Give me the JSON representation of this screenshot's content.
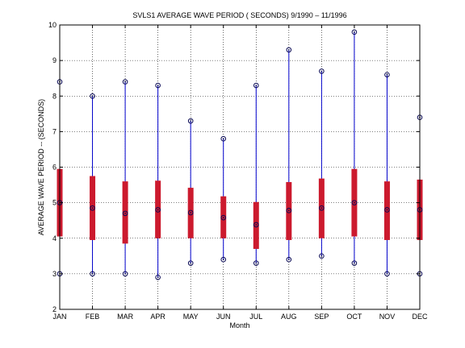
{
  "chart_data": {
    "type": "boxplot",
    "title": "SVLS1  AVERAGE WAVE PERIOD ( SECONDS) 9/1990 – 11/1996",
    "xlabel": "Month",
    "ylabel": "AVERAGE WAVE PERIOD -- (SECONDS)",
    "ylim": [
      2,
      10
    ],
    "yticks": [
      2,
      3,
      4,
      5,
      6,
      7,
      8,
      9,
      10
    ],
    "grid": true,
    "categories": [
      "JAN",
      "FEB",
      "MAR",
      "APR",
      "MAY",
      "JUN",
      "JUL",
      "AUG",
      "SEP",
      "OCT",
      "NOV",
      "DEC"
    ],
    "min": [
      3.0,
      3.0,
      3.0,
      2.9,
      3.3,
      3.4,
      3.3,
      3.4,
      3.5,
      3.3,
      3.0,
      3.0
    ],
    "q1": [
      4.05,
      3.95,
      3.85,
      4.0,
      4.0,
      4.0,
      3.7,
      3.95,
      4.0,
      4.05,
      3.95,
      3.95
    ],
    "mean": [
      5.0,
      4.85,
      4.7,
      4.8,
      4.72,
      4.58,
      4.38,
      4.78,
      4.85,
      5.0,
      4.8,
      4.8
    ],
    "q3": [
      5.95,
      5.75,
      5.6,
      5.62,
      5.42,
      5.18,
      5.02,
      5.58,
      5.68,
      5.95,
      5.6,
      5.65
    ],
    "max": [
      8.4,
      8.0,
      8.4,
      8.3,
      7.3,
      6.8,
      8.3,
      9.3,
      8.7,
      9.8,
      8.6,
      7.4
    ],
    "colors": {
      "whisker": "#0000cc",
      "box": "#cc1a2e",
      "marker": "#0a0a55",
      "grid": "#000000"
    }
  }
}
